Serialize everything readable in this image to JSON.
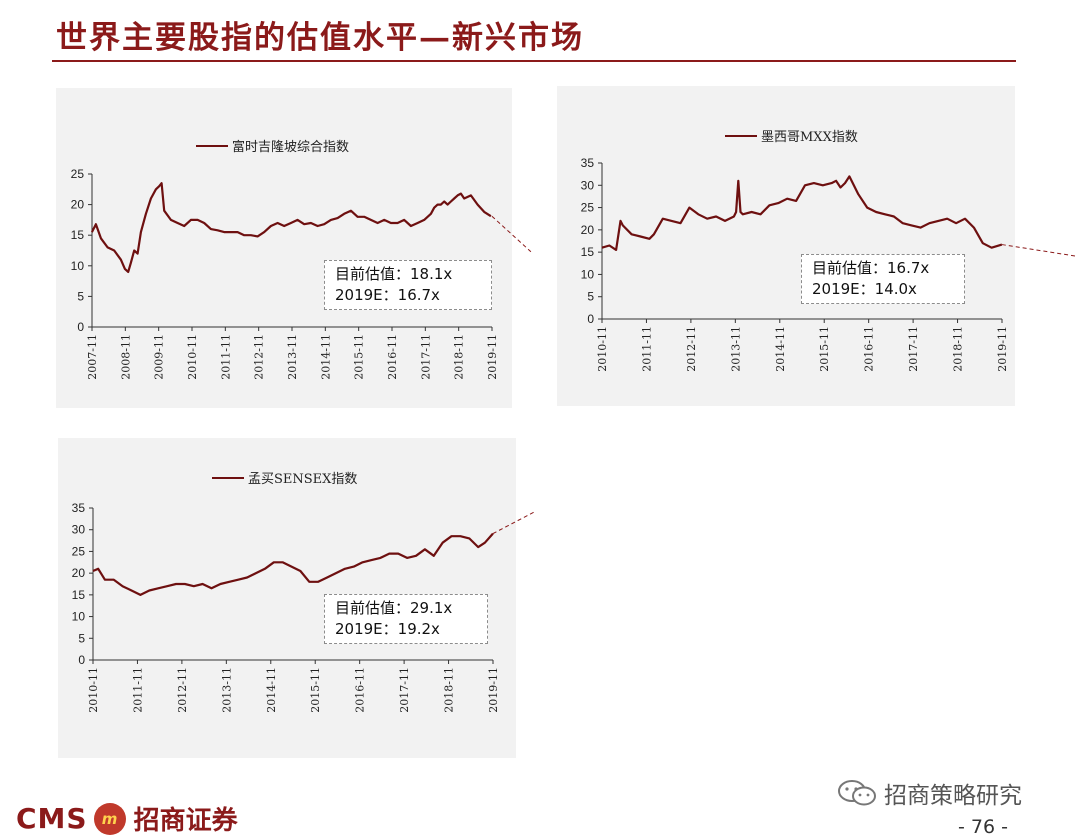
{
  "page": {
    "title": "世界主要股指的估值水平—新兴市场",
    "footer_cms": "CMS",
    "footer_badge": "m",
    "footer_name": "招商证券",
    "wechat_label": "招商策略研究",
    "page_number": "- 76 -"
  },
  "colors": {
    "accent": "#8b1a1a",
    "series": "#6e1010",
    "panel": "#f2f2f2"
  },
  "chart_data": [
    {
      "type": "line",
      "title": "",
      "xlabel": "",
      "ylabel": "",
      "legend": [
        "富时吉隆坡综合指数"
      ],
      "legend_position": "top",
      "x_ticks": [
        "2007-11",
        "2008-11",
        "2009-11",
        "2010-11",
        "2011-11",
        "2012-11",
        "2013-11",
        "2014-11",
        "2015-11",
        "2016-11",
        "2017-11",
        "2018-11",
        "2019-11"
      ],
      "y_ticks": [
        0,
        5,
        10,
        15,
        20,
        25
      ],
      "ylim": [
        0,
        25
      ],
      "xlim": [
        2007.833,
        2019.833
      ],
      "grid": false,
      "annotation_lines": [
        "目前估值：18.1x",
        "2019E：16.7x"
      ],
      "series": [
        {
          "name": "富时吉隆坡综合指数",
          "x": [
            2007.83,
            2007.95,
            2008.1,
            2008.3,
            2008.5,
            2008.7,
            2008.82,
            2008.92,
            2009.0,
            2009.1,
            2009.2,
            2009.3,
            2009.45,
            2009.6,
            2009.75,
            2009.85,
            2009.92,
            2010.0,
            2010.2,
            2010.4,
            2010.6,
            2010.8,
            2011.0,
            2011.2,
            2011.4,
            2011.6,
            2011.8,
            2012.0,
            2012.2,
            2012.4,
            2012.6,
            2012.8,
            2013.0,
            2013.2,
            2013.4,
            2013.6,
            2013.8,
            2014.0,
            2014.2,
            2014.4,
            2014.6,
            2014.8,
            2015.0,
            2015.2,
            2015.4,
            2015.6,
            2015.8,
            2016.0,
            2016.2,
            2016.4,
            2016.6,
            2016.8,
            2017.0,
            2017.2,
            2017.4,
            2017.6,
            2017.8,
            2018.0,
            2018.1,
            2018.2,
            2018.3,
            2018.4,
            2018.5,
            2018.6,
            2018.7,
            2018.8,
            2018.9,
            2019.0,
            2019.2,
            2019.4,
            2019.6,
            2019.8
          ],
          "y": [
            15.5,
            16.8,
            14.5,
            13.0,
            12.5,
            11.0,
            9.5,
            9.0,
            10.5,
            12.5,
            12.0,
            15.5,
            18.5,
            21.0,
            22.5,
            23.0,
            23.5,
            19.0,
            17.5,
            17.0,
            16.5,
            17.5,
            17.5,
            17.0,
            16.0,
            15.8,
            15.5,
            15.5,
            15.5,
            15.0,
            15.0,
            14.8,
            15.5,
            16.5,
            17.0,
            16.5,
            17.0,
            17.5,
            16.8,
            17.0,
            16.5,
            16.8,
            17.5,
            17.8,
            18.5,
            19.0,
            18.0,
            18.0,
            17.5,
            17.0,
            17.5,
            17.0,
            17.0,
            17.5,
            16.5,
            17.0,
            17.5,
            18.5,
            19.5,
            20.0,
            20.0,
            20.5,
            20.0,
            20.5,
            21.0,
            21.5,
            21.8,
            21.0,
            21.5,
            20.0,
            18.8,
            18.1
          ]
        }
      ],
      "trend_line": [
        [
          2019.83,
          18.1
        ],
        [
          2021.0,
          12.3
        ]
      ]
    },
    {
      "type": "line",
      "title": "",
      "xlabel": "",
      "ylabel": "",
      "legend": [
        "墨西哥MXX指数"
      ],
      "legend_position": "top",
      "x_ticks": [
        "2010-11",
        "2011-11",
        "2012-11",
        "2013-11",
        "2014-11",
        "2015-11",
        "2016-11",
        "2017-11",
        "2018-11",
        "2019-11"
      ],
      "y_ticks": [
        0,
        5,
        10,
        15,
        20,
        25,
        30,
        35
      ],
      "ylim": [
        0,
        35
      ],
      "xlim": [
        2010.833,
        2019.833
      ],
      "grid": false,
      "annotation_lines": [
        "目前估值：16.7x",
        "2019E：14.0x"
      ],
      "series": [
        {
          "name": "墨西哥MXX指数",
          "x": [
            2010.83,
            2011.0,
            2011.15,
            2011.25,
            2011.3,
            2011.5,
            2011.7,
            2011.9,
            2012.0,
            2012.2,
            2012.4,
            2012.6,
            2012.8,
            2013.0,
            2013.2,
            2013.4,
            2013.6,
            2013.8,
            2013.85,
            2013.9,
            2013.95,
            2014.0,
            2014.2,
            2014.4,
            2014.6,
            2014.8,
            2015.0,
            2015.2,
            2015.4,
            2015.6,
            2015.8,
            2016.0,
            2016.1,
            2016.2,
            2016.3,
            2016.4,
            2016.6,
            2016.8,
            2017.0,
            2017.2,
            2017.4,
            2017.6,
            2017.8,
            2018.0,
            2018.2,
            2018.4,
            2018.6,
            2018.8,
            2019.0,
            2019.2,
            2019.4,
            2019.6,
            2019.83
          ],
          "y": [
            16.0,
            16.5,
            15.5,
            22.0,
            21.0,
            19.0,
            18.5,
            18.0,
            19.0,
            22.5,
            22.0,
            21.5,
            25.0,
            23.5,
            22.5,
            23.0,
            22.0,
            23.0,
            24.0,
            31.0,
            24.0,
            23.5,
            24.0,
            23.5,
            25.5,
            26.0,
            27.0,
            26.5,
            30.0,
            30.5,
            30.0,
            30.5,
            31.0,
            29.5,
            30.5,
            32.0,
            28.0,
            25.0,
            24.0,
            23.5,
            23.0,
            21.5,
            21.0,
            20.5,
            21.5,
            22.0,
            22.5,
            21.5,
            22.5,
            20.5,
            17.0,
            16.0,
            16.7
          ]
        }
      ],
      "trend_line": [
        [
          2019.83,
          16.7
        ],
        [
          2021.5,
          14.1
        ]
      ]
    },
    {
      "type": "line",
      "title": "",
      "xlabel": "",
      "ylabel": "",
      "legend": [
        "孟买SENSEX指数"
      ],
      "legend_position": "top",
      "x_ticks": [
        "2010-11",
        "2011-11",
        "2012-11",
        "2013-11",
        "2014-11",
        "2015-11",
        "2016-11",
        "2017-11",
        "2018-11",
        "2019-11"
      ],
      "y_ticks": [
        0,
        5,
        10,
        15,
        20,
        25,
        30,
        35
      ],
      "ylim": [
        0,
        35
      ],
      "xlim": [
        2010.833,
        2019.833
      ],
      "grid": false,
      "annotation_lines": [
        "目前估值：29.1x",
        "2019E：19.2x"
      ],
      "series": [
        {
          "name": "孟买SENSEX指数",
          "x": [
            2010.83,
            2010.95,
            2011.1,
            2011.3,
            2011.5,
            2011.7,
            2011.9,
            2012.1,
            2012.3,
            2012.5,
            2012.7,
            2012.9,
            2013.1,
            2013.3,
            2013.5,
            2013.7,
            2013.9,
            2014.1,
            2014.3,
            2014.5,
            2014.7,
            2014.9,
            2015.1,
            2015.3,
            2015.5,
            2015.7,
            2015.9,
            2016.1,
            2016.3,
            2016.5,
            2016.7,
            2016.9,
            2017.1,
            2017.3,
            2017.5,
            2017.7,
            2017.9,
            2018.1,
            2018.3,
            2018.5,
            2018.7,
            2018.9,
            2019.1,
            2019.3,
            2019.5,
            2019.65,
            2019.83
          ],
          "y": [
            20.5,
            21.0,
            18.5,
            18.5,
            17.0,
            16.0,
            15.0,
            16.0,
            16.5,
            17.0,
            17.5,
            17.5,
            17.0,
            17.5,
            16.5,
            17.5,
            18.0,
            18.5,
            19.0,
            20.0,
            21.0,
            22.5,
            22.5,
            21.5,
            20.5,
            18.0,
            18.0,
            19.0,
            20.0,
            21.0,
            21.5,
            22.5,
            23.0,
            23.5,
            24.5,
            24.5,
            23.5,
            24.0,
            25.5,
            24.0,
            27.0,
            28.5,
            28.5,
            28.0,
            26.0,
            27.0,
            29.1
          ]
        }
      ],
      "trend_line": [
        [
          2019.83,
          29.1
        ],
        [
          2020.8,
          34.3
        ]
      ]
    }
  ]
}
